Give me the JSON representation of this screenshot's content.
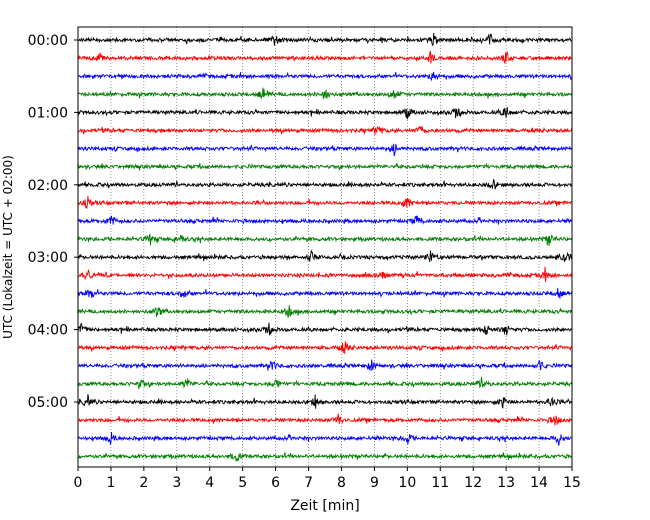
{
  "chart_data": {
    "type": "line",
    "subtype": "helicorder",
    "title": "",
    "xlabel": "Zeit  [min]",
    "ylabel": "UTC (Lokalzeit = UTC + 02:00)",
    "xlim": [
      0,
      15
    ],
    "x_ticks": [
      "0",
      "1",
      "2",
      "3",
      "4",
      "5",
      "6",
      "7",
      "8",
      "9",
      "10",
      "11",
      "12",
      "13",
      "14",
      "15"
    ],
    "y_ticks": [
      "00:00",
      "01:00",
      "02:00",
      "03:00",
      "04:00",
      "05:00"
    ],
    "grid": "vertical dotted lines at each minute",
    "trace_interval_minutes": 15,
    "trace_count": 24,
    "trace_colors": [
      "#000000",
      "#ff0000",
      "#0000ff",
      "#008000"
    ],
    "traces": [
      {
        "start": "00:00",
        "color": "#000000",
        "events_min": [
          6.0,
          10.8,
          12.5
        ]
      },
      {
        "start": "00:15",
        "color": "#ff0000",
        "events_min": [
          0.6,
          10.7,
          13.0
        ]
      },
      {
        "start": "00:30",
        "color": "#0000ff",
        "events_min": [
          10.8
        ]
      },
      {
        "start": "00:45",
        "color": "#008000",
        "events_min": [
          5.6,
          7.5,
          9.6
        ]
      },
      {
        "start": "01:00",
        "color": "#000000",
        "events_min": [
          10.0,
          11.5,
          13.0
        ]
      },
      {
        "start": "01:15",
        "color": "#ff0000",
        "events_min": [
          9.1,
          10.4
        ]
      },
      {
        "start": "01:30",
        "color": "#0000ff",
        "events_min": [
          9.6
        ]
      },
      {
        "start": "01:45",
        "color": "#008000",
        "events_min": []
      },
      {
        "start": "02:00",
        "color": "#000000",
        "events_min": [
          12.6
        ]
      },
      {
        "start": "02:15",
        "color": "#ff0000",
        "events_min": [
          0.3,
          10.0
        ]
      },
      {
        "start": "02:30",
        "color": "#0000ff",
        "events_min": [
          1.0,
          10.3
        ]
      },
      {
        "start": "02:45",
        "color": "#008000",
        "events_min": [
          2.2,
          3.1,
          14.3
        ]
      },
      {
        "start": "03:00",
        "color": "#000000",
        "events_min": [
          7.1,
          10.7,
          14.8
        ]
      },
      {
        "start": "03:15",
        "color": "#ff0000",
        "events_min": [
          0.3,
          9.2,
          14.2
        ]
      },
      {
        "start": "03:30",
        "color": "#0000ff",
        "events_min": [
          0.4,
          3.2,
          14.6
        ]
      },
      {
        "start": "03:45",
        "color": "#008000",
        "events_min": [
          2.4,
          6.4
        ]
      },
      {
        "start": "04:00",
        "color": "#000000",
        "events_min": [
          0.1,
          5.8,
          12.4,
          13.0
        ]
      },
      {
        "start": "04:15",
        "color": "#ff0000",
        "events_min": [
          8.1
        ]
      },
      {
        "start": "04:30",
        "color": "#0000ff",
        "events_min": [
          5.9,
          8.9,
          14.0
        ]
      },
      {
        "start": "04:45",
        "color": "#008000",
        "events_min": [
          1.9,
          3.3,
          6.0,
          12.3
        ]
      },
      {
        "start": "05:00",
        "color": "#000000",
        "events_min": [
          0.3,
          7.2,
          12.9,
          14.4
        ]
      },
      {
        "start": "05:15",
        "color": "#ff0000",
        "events_min": [
          7.9,
          14.5
        ]
      },
      {
        "start": "05:30",
        "color": "#0000ff",
        "events_min": [
          1.0,
          10.0,
          14.6
        ]
      },
      {
        "start": "05:45",
        "color": "#008000",
        "events_min": [
          4.8
        ]
      }
    ]
  }
}
